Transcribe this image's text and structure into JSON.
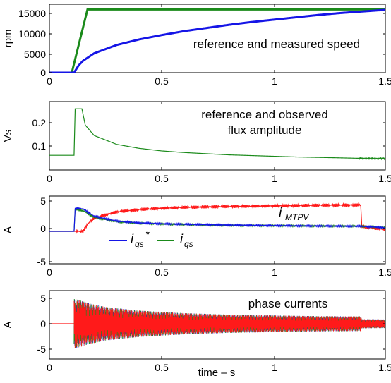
{
  "colors": {
    "blue": "#1515e6",
    "green": "#1a8a1a",
    "red": "#ff1a1a",
    "axis": "#000000"
  },
  "xlabel": "time – s",
  "chart_data": [
    {
      "type": "line",
      "ylabel": "rpm",
      "annotation": "reference and measured speed",
      "xlim": [
        0,
        1.5
      ],
      "ylim": [
        0,
        16000
      ],
      "xticks": [
        "0",
        "0.5",
        "1",
        "1.5"
      ],
      "yticks": [
        "0",
        "5000",
        "10000",
        "15000"
      ],
      "ytick_values": [
        0,
        5000,
        10000,
        15000
      ],
      "series": [
        {
          "color": "green",
          "x": [
            0,
            0.1,
            0.17,
            1.5
          ],
          "y": [
            0,
            0,
            16000,
            16000
          ]
        },
        {
          "color": "blue",
          "x": [
            0,
            0.11,
            0.13,
            0.15,
            0.2,
            0.3,
            0.4,
            0.5,
            0.6,
            0.7,
            0.8,
            0.9,
            1.0,
            1.1,
            1.2,
            1.3,
            1.4,
            1.5
          ],
          "y": [
            0,
            0,
            1800,
            3000,
            4900,
            7000,
            8400,
            9500,
            10500,
            11300,
            12100,
            12800,
            13400,
            14000,
            14600,
            15100,
            15500,
            15900
          ]
        }
      ]
    },
    {
      "type": "line",
      "ylabel": "Vs",
      "annotation": [
        "reference and observed",
        "flux amplitude"
      ],
      "xlim": [
        0,
        1.5
      ],
      "ylim": [
        0.02,
        0.28
      ],
      "xticks": [
        "0",
        "0.5",
        "1",
        "1.5"
      ],
      "yticks": [
        "0.1",
        "0.2"
      ],
      "ytick_values": [
        0.1,
        0.2
      ],
      "series": [
        {
          "color": "green",
          "x": [
            0,
            0.11,
            0.115,
            0.145,
            0.16,
            0.2,
            0.3,
            0.4,
            0.5,
            0.6,
            0.7,
            0.8,
            0.9,
            1.0,
            1.1,
            1.2,
            1.3,
            1.39,
            1.5
          ],
          "y": [
            0.06,
            0.06,
            0.26,
            0.26,
            0.19,
            0.145,
            0.107,
            0.09,
            0.079,
            0.072,
            0.067,
            0.062,
            0.059,
            0.056,
            0.053,
            0.051,
            0.049,
            0.047,
            0.046
          ]
        }
      ]
    },
    {
      "type": "line",
      "ylabel": "A",
      "xlim": [
        0,
        1.5
      ],
      "ylim": [
        -6,
        5.5
      ],
      "xticks": [
        "0",
        "0.5",
        "1",
        "1.5"
      ],
      "yticks": [
        "-5",
        "0",
        "5"
      ],
      "ytick_values": [
        -5,
        0,
        5
      ],
      "labels": {
        "mtpv_main": "i",
        "mtpv_sub": "MTPV",
        "iqs_star_main": "i",
        "iqs_star_sub": "qs",
        "iqs_star_sup": "*",
        "iqs_main": "i",
        "iqs_sub": "qs"
      },
      "series": [
        {
          "color": "red",
          "x": [
            0,
            0.15,
            0.17,
            0.2,
            0.3,
            0.4,
            0.5,
            0.6,
            0.8,
            1.0,
            1.2,
            1.39,
            1.395,
            1.5
          ],
          "y": [
            0,
            0,
            1.2,
            2.2,
            3.2,
            3.6,
            3.8,
            3.95,
            4.1,
            4.2,
            4.3,
            4.35,
            0.8,
            0.3
          ]
        },
        {
          "color": "green",
          "x": [
            0,
            0.11,
            0.115,
            0.15,
            0.2,
            0.3,
            0.4,
            0.5,
            0.7,
            0.9,
            1.1,
            1.39,
            1.5
          ],
          "y": [
            0,
            0,
            3.6,
            3.4,
            2.3,
            1.6,
            1.35,
            1.2,
            1.05,
            0.95,
            0.9,
            0.85,
            0.6
          ]
        },
        {
          "color": "blue",
          "x": [
            0,
            0.11,
            0.115,
            0.15,
            0.2,
            0.3,
            0.4,
            0.5,
            0.7,
            0.9,
            1.1,
            1.39,
            1.5
          ],
          "y": [
            0,
            0,
            3.8,
            3.7,
            2.5,
            1.7,
            1.4,
            1.25,
            1.1,
            1.0,
            0.9,
            0.85,
            0.6
          ]
        }
      ]
    },
    {
      "type": "line",
      "ylabel": "A",
      "annotation": "phase currents",
      "xlim": [
        0,
        1.5
      ],
      "ylim": [
        -6,
        6
      ],
      "xticks": [
        "0",
        "0.5",
        "1",
        "1.5"
      ],
      "yticks": [
        "-5",
        "0",
        "5"
      ],
      "ytick_values": [
        -5,
        0,
        5
      ],
      "envelope": {
        "x": [
          0.11,
          0.13,
          0.17,
          0.25,
          0.4,
          0.6,
          0.8,
          1.0,
          1.2,
          1.39,
          1.395,
          1.5
        ],
        "amp": [
          4.9,
          4.7,
          4.1,
          3.3,
          2.6,
          2.1,
          1.8,
          1.65,
          1.5,
          1.45,
          0.9,
          0.85
        ]
      },
      "series": [
        {
          "color": "blue"
        },
        {
          "color": "green"
        },
        {
          "color": "red"
        }
      ]
    }
  ]
}
